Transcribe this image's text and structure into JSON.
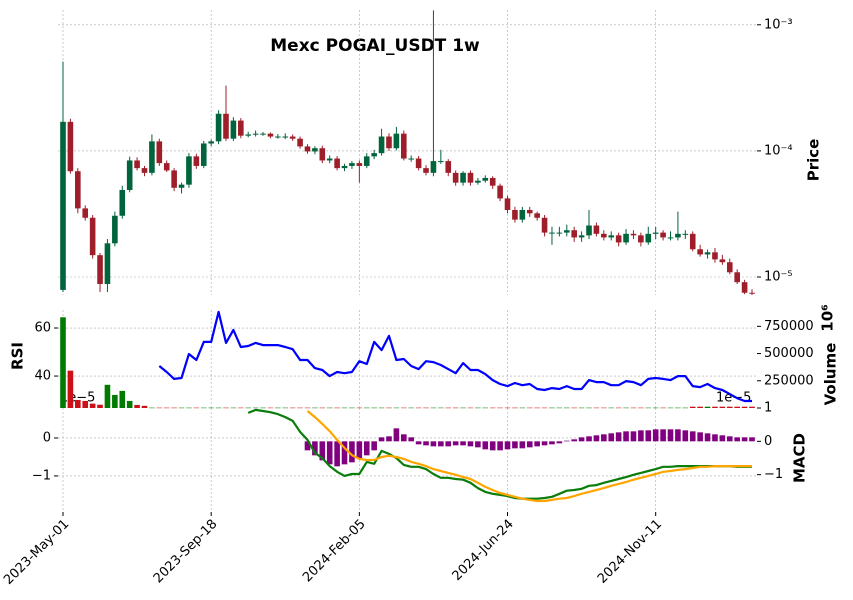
{
  "chart_data": [
    {
      "type": "candlestick",
      "title": "Mexc POGAI_USDT 1w",
      "ylabel": "Price",
      "log_scale": true,
      "up_color": "#00643c",
      "down_color": "#9e1f2a",
      "ylim": [
        7.2e-06,
        0.00131
      ],
      "yticks": [
        {
          "value": 1e-05,
          "label": "10⁻⁵"
        },
        {
          "value": 0.0001,
          "label": "10⁻⁴"
        },
        {
          "value": 0.001,
          "label": "10⁻³"
        }
      ],
      "grid": true,
      "open": [
        7.9e-06,
        0.00017,
        6.9e-05,
        3.5e-05,
        2.95e-05,
        1.49e-05,
        8.8e-06,
        1.85e-05,
        3.06e-05,
        4.9e-05,
        8.4e-05,
        7.3e-05,
        6.7e-05,
        0.000119,
        8e-05,
        7e-05,
        5.1e-05,
        5.4e-05,
        9.05e-05,
        7.6e-05,
        0.0001145,
        0.000119,
        0.000197,
        0.000125,
        0.000174,
        0.000132,
        0.000135,
        0.000137,
        0.000137,
        0.00013,
        0.00013,
        0.00013,
        0.000125,
        0.0001085,
        9.9e-05,
        0.000105,
        8.4e-05,
        8.7e-05,
        7.3e-05,
        7.6e-05,
        8e-05,
        7.6e-05,
        9.05e-05,
        9.6e-05,
        0.00013,
        0.000105,
        0.000137,
        8.7e-05,
        8.7e-05,
        7.3e-05,
        6.7e-05,
        8.3e-05,
        8.3e-05,
        6.7e-05,
        5.6e-05,
        6.7e-05,
        5.6e-05,
        5.8e-05,
        6.1e-05,
        5.3e-05,
        4.2e-05,
        3.4e-05,
        2.85e-05,
        3.4e-05,
        3.2e-05,
        2.95e-05,
        2.25e-05,
        2.25e-05,
        2.25e-05,
        2.35e-05,
        2.06e-05,
        2.14e-05,
        2.56e-05,
        2.2e-05,
        2.06e-05,
        2.14e-05,
        1.88e-05,
        2.2e-05,
        2.14e-05,
        1.88e-05,
        2.2e-05,
        2.25e-05,
        2.06e-05,
        2.06e-05,
        2.2e-05,
        2.2e-05,
        1.66e-05,
        1.51e-05,
        1.57e-05,
        1.38e-05,
        1.31e-05,
        1.09e-05,
        9.1e-06,
        7.5e-06
      ],
      "high": [
        0.00051,
        0.00018,
        7.3e-05,
        3.7e-05,
        3.1e-05,
        1.55e-05,
        2e-05,
        3.3e-05,
        5.3e-05,
        9e-05,
        8.9e-05,
        7.6e-05,
        0.000135,
        0.000125,
        8.4e-05,
        7.3e-05,
        5.6e-05,
        9.6e-05,
        9.5e-05,
        0.00012,
        0.000123,
        0.00021,
        0.00033,
        0.000185,
        0.000182,
        0.000142,
        0.000145,
        0.000141,
        0.00014,
        0.000136,
        0.000138,
        0.000135,
        0.00013,
        0.000113,
        0.000109,
        0.00011,
        9.2e-05,
        9.1e-05,
        7.9e-05,
        8.3e-05,
        8.4e-05,
        9.6e-05,
        0.000102,
        0.00015,
        0.000138,
        0.000155,
        0.000145,
        9.2e-05,
        9.1e-05,
        7.7e-05,
        0.0013,
        0.000102,
        8.6e-05,
        7e-05,
        6.9e-05,
        7e-05,
        6.1e-05,
        6.4e-05,
        6.3e-05,
        5.5e-05,
        4.4e-05,
        3.6e-05,
        3.6e-05,
        3.6e-05,
        3.3e-05,
        3.1e-05,
        2.5e-05,
        2.5e-05,
        2.6e-05,
        2.5e-05,
        2.3e-05,
        3.4e-05,
        2.7e-05,
        2.35e-05,
        2.3e-05,
        2.25e-05,
        2.4e-05,
        2.35e-05,
        2.25e-05,
        2.5e-05,
        2.5e-05,
        2.35e-05,
        2.3e-05,
        3.3e-05,
        2.35e-05,
        2.3e-05,
        1.8e-05,
        1.65e-05,
        1.7e-05,
        1.5e-05,
        1.4e-05,
        1.15e-05,
        9.5e-06,
        8e-06
      ],
      "low": [
        7.6e-06,
        6.6e-05,
        3.2e-05,
        2.8e-05,
        1.4e-05,
        7.6e-06,
        7.6e-06,
        1.75e-05,
        2.9e-05,
        4.7e-05,
        7e-05,
        6.3e-05,
        6.4e-05,
        7.6e-05,
        6.8e-05,
        4.8e-05,
        4.6e-05,
        5.1e-05,
        7.2e-05,
        7.3e-05,
        0.000109,
        0.000113,
        0.00012,
        0.00012,
        0.000126,
        0.000128,
        0.00013,
        0.000132,
        0.000126,
        0.000125,
        0.000124,
        0.00012,
        0.000104,
        9.5e-05,
        9.4e-05,
        8e-05,
        8e-05,
        7e-05,
        6.9e-05,
        7.2e-05,
        5.6e-05,
        7.3e-05,
        8.6e-05,
        9.2e-05,
        0.0001,
        0.000101,
        8.4e-05,
        8.2e-05,
        7e-05,
        6.4e-05,
        6.3e-05,
        7.9e-05,
        6.3e-05,
        5.3e-05,
        5.3e-05,
        5.3e-05,
        5.4e-05,
        5.6e-05,
        5e-05,
        4e-05,
        3.2e-05,
        2.7e-05,
        2.7e-05,
        3e-05,
        2.8e-05,
        2.1e-05,
        1.8e-05,
        2.1e-05,
        2.1e-05,
        1.9e-05,
        1.9e-05,
        2e-05,
        2.1e-05,
        1.95e-05,
        1.95e-05,
        1.75e-05,
        1.8e-05,
        2e-05,
        1.75e-05,
        1.8e-05,
        2e-05,
        1.95e-05,
        1.95e-05,
        1.95e-05,
        2e-05,
        1.6e-05,
        1.45e-05,
        1.4e-05,
        1.3e-05,
        1.25e-05,
        1.05e-05,
        8.8e-06,
        7.3e-06,
        7.2e-06
      ],
      "close": [
        0.00017,
        6.9e-05,
        3.5e-05,
        2.95e-05,
        1.49e-05,
        8.8e-06,
        1.85e-05,
        3.06e-05,
        4.9e-05,
        8.4e-05,
        7.3e-05,
        6.7e-05,
        0.000119,
        8e-05,
        7e-05,
        5.1e-05,
        5.4e-05,
        9.05e-05,
        7.6e-05,
        0.0001145,
        0.000119,
        0.000197,
        0.000125,
        0.000174,
        0.000132,
        0.000135,
        0.000137,
        0.000137,
        0.00013,
        0.00013,
        0.00013,
        0.000125,
        0.0001085,
        9.9e-05,
        0.000105,
        8.4e-05,
        8.7e-05,
        7.3e-05,
        7.6e-05,
        8e-05,
        7.6e-05,
        9.05e-05,
        9.6e-05,
        0.00013,
        0.000105,
        0.000137,
        8.7e-05,
        8.7e-05,
        7.3e-05,
        6.7e-05,
        8.3e-05,
        8.3e-05,
        6.7e-05,
        5.6e-05,
        6.7e-05,
        5.6e-05,
        5.8e-05,
        6.1e-05,
        5.3e-05,
        4.2e-05,
        3.4e-05,
        2.85e-05,
        3.4e-05,
        3.2e-05,
        2.95e-05,
        2.25e-05,
        2.25e-05,
        2.25e-05,
        2.35e-05,
        2.06e-05,
        2.14e-05,
        2.56e-05,
        2.2e-05,
        2.06e-05,
        2.14e-05,
        1.88e-05,
        2.2e-05,
        2.14e-05,
        1.88e-05,
        2.2e-05,
        2.25e-05,
        2.06e-05,
        2.06e-05,
        2.2e-05,
        2.2e-05,
        1.66e-05,
        1.51e-05,
        1.57e-05,
        1.38e-05,
        1.31e-05,
        1.09e-05,
        9.1e-06,
        7.5e-06,
        7.4e-06
      ]
    },
    {
      "type": "combo",
      "ylabel": "RSI",
      "y2label": "Volume",
      "y2_offset": "10⁶",
      "ylim": [
        26.7,
        67.5
      ],
      "yticks": [
        40,
        60
      ],
      "y2lim": [
        0,
        900000
      ],
      "y2ticks": [
        250000,
        500000,
        750000
      ],
      "grid": true,
      "series": [
        {
          "type": "line",
          "color": "#0000ff",
          "values": [
            null,
            null,
            null,
            null,
            null,
            null,
            null,
            null,
            null,
            null,
            null,
            null,
            null,
            44.2,
            41.7,
            38.8,
            39.2,
            49.2,
            46.7,
            54.2,
            54.2,
            66.7,
            53.8,
            59.2,
            52.1,
            52.5,
            53.8,
            52.9,
            52.9,
            52.9,
            52.1,
            51.2,
            46.7,
            46.7,
            43.3,
            42.5,
            40,
            41.7,
            41.2,
            41.7,
            46.2,
            45,
            54.2,
            50.8,
            56.7,
            46.7,
            47.1,
            44.2,
            42.9,
            46.2,
            45.8,
            44.6,
            42.9,
            41.2,
            45.4,
            42.5,
            42.5,
            40.8,
            38.3,
            36.7,
            35.8,
            37.1,
            36.2,
            36.7,
            34.6,
            34.2,
            35,
            34.6,
            35.8,
            34.6,
            34.6,
            38.3,
            37.5,
            37.5,
            36.2,
            36.2,
            37.9,
            37.5,
            36.2,
            38.8,
            39.2,
            38.8,
            38.3,
            40,
            40,
            35.8,
            35.4,
            36.7,
            35,
            34.2,
            32.5,
            30.8,
            29.6,
            29.6
          ]
        },
        {
          "type": "bar",
          "axis": "y2",
          "up_color": "#007a00",
          "down_color": "#cc1018",
          "values": [
            833000,
            343000,
            74000,
            65000,
            40000,
            30000,
            213000,
            120000,
            157000,
            65000,
            28000,
            20000,
            3000,
            3000,
            3000,
            3000,
            3000,
            3000,
            3000,
            3000,
            3000,
            3000,
            3000,
            3000,
            3000,
            3000,
            3000,
            3000,
            3000,
            3000,
            3000,
            3000,
            3000,
            3000,
            3000,
            3000,
            3000,
            3000,
            3000,
            3000,
            3000,
            3000,
            3000,
            3000,
            3000,
            3000,
            3000,
            3000,
            3000,
            3000,
            3000,
            3000,
            3000,
            3000,
            3000,
            3000,
            3000,
            3000,
            3000,
            3000,
            3000,
            3000,
            3000,
            3000,
            3000,
            3000,
            3000,
            3000,
            3000,
            3000,
            3000,
            3000,
            3000,
            3000,
            3000,
            3000,
            3000,
            3000,
            3000,
            3000,
            3000,
            3000,
            3000,
            3000,
            3000,
            12000,
            12000,
            12000,
            12000,
            12000,
            12000,
            12000,
            12000,
            12000
          ]
        }
      ]
    },
    {
      "type": "combo",
      "ylabel": "MACD",
      "y_offset": "1e−5",
      "y2_offset": "1e−5",
      "ylim": [
        -1.95e-05,
        7.9e-06
      ],
      "yticks": [
        {
          "value": -1e-05,
          "label": "−1"
        },
        0
      ],
      "y2lim": [
        -2.12e-05,
        1e-05
      ],
      "y2ticks": [
        {
          "value": -1e-05,
          "label": "−1"
        },
        0,
        {
          "value": 1e-05,
          "label": "1"
        }
      ],
      "grid": true,
      "categories": [
        "2023-May-01",
        null,
        null,
        null,
        null,
        null,
        null,
        null,
        null,
        null,
        null,
        null,
        null,
        null,
        null,
        null,
        null,
        null,
        null,
        null,
        "2023-Sep-18",
        null,
        null,
        null,
        null,
        null,
        null,
        null,
        null,
        null,
        null,
        null,
        null,
        null,
        null,
        null,
        null,
        null,
        null,
        null,
        "2024-Feb-05",
        null,
        null,
        null,
        null,
        null,
        null,
        null,
        null,
        null,
        null,
        null,
        null,
        null,
        null,
        null,
        null,
        null,
        null,
        null,
        "2024-Jun-24",
        null,
        null,
        null,
        null,
        null,
        null,
        null,
        null,
        null,
        null,
        null,
        null,
        null,
        null,
        null,
        null,
        null,
        null,
        null,
        "2024-Nov-11",
        null,
        null,
        null,
        null,
        null,
        null,
        null,
        null,
        null,
        null,
        null,
        null,
        null
      ],
      "series": [
        {
          "type": "bar",
          "axis": "y2",
          "color": "#800080",
          "values": [
            null,
            null,
            null,
            null,
            null,
            null,
            null,
            null,
            null,
            null,
            null,
            null,
            null,
            null,
            null,
            null,
            null,
            null,
            null,
            null,
            null,
            null,
            null,
            null,
            null,
            null,
            null,
            null,
            null,
            null,
            null,
            null,
            null,
            -2.7e-06,
            -4.2e-06,
            -5.7e-06,
            -6.9e-06,
            -7.5e-06,
            -6.9e-06,
            -6.3e-06,
            -5.1e-06,
            -4.2e-06,
            -2.7e-06,
            1.2e-06,
            1.5e-06,
            3.9e-06,
            2.1e-06,
            1.2e-06,
            -9e-07,
            -1.2e-06,
            -1.5e-06,
            -1.5e-06,
            -1.5e-06,
            -1.2e-06,
            -1.2e-06,
            -1.5e-06,
            -1.8e-06,
            -2.4e-06,
            -2.7e-06,
            -2.7e-06,
            -2.4e-06,
            -2.1e-06,
            -2.1e-06,
            -1.8e-06,
            -1.5e-06,
            -1.2e-06,
            -9e-07,
            -6e-07,
            2e-07,
            6e-07,
            1.2e-06,
            1.5e-06,
            1.8e-06,
            2.1e-06,
            2.4e-06,
            2.7e-06,
            3e-06,
            3e-06,
            3.3e-06,
            3.3e-06,
            3.6e-06,
            3.6e-06,
            3.6e-06,
            3.6e-06,
            3.3e-06,
            3e-06,
            2.7e-06,
            2.4e-06,
            2.1e-06,
            1.8e-06,
            1.5e-06,
            1.2e-06,
            1.2e-06,
            1.2e-06
          ]
        },
        {
          "type": "line",
          "color": "#0a7d0a",
          "values": [
            null,
            null,
            null,
            null,
            null,
            null,
            null,
            null,
            null,
            null,
            null,
            null,
            null,
            null,
            null,
            null,
            null,
            null,
            null,
            null,
            null,
            null,
            null,
            null,
            null,
            6.6e-06,
            7.4e-06,
            7.1e-06,
            6.8e-06,
            6.3e-06,
            5.5e-06,
            4.5e-06,
            1.6e-06,
            -5e-07,
            -3.9e-06,
            -5.3e-06,
            -7.4e-06,
            -8.9e-06,
            -1e-05,
            -9.5e-06,
            -9.5e-06,
            -6.3e-06,
            -6.8e-06,
            -3.4e-06,
            -4.2e-06,
            -5.3e-06,
            -7.1e-06,
            -7.6e-06,
            -7.6e-06,
            -8.2e-06,
            -9.5e-06,
            -1.05e-05,
            -1.05e-05,
            -1.08e-05,
            -1.1e-05,
            -1.18e-05,
            -1.32e-05,
            -1.42e-05,
            -1.47e-05,
            -1.5e-05,
            -1.53e-05,
            -1.58e-05,
            -1.6e-05,
            -1.6e-05,
            -1.6e-05,
            -1.58e-05,
            -1.55e-05,
            -1.47e-05,
            -1.39e-05,
            -1.37e-05,
            -1.34e-05,
            -1.26e-05,
            -1.24e-05,
            -1.18e-05,
            -1.13e-05,
            -1.08e-05,
            -1.03e-05,
            -9.7e-06,
            -9.2e-06,
            -8.7e-06,
            -8.2e-06,
            -7.6e-06,
            -7.6e-06,
            -7.4e-06,
            -7.4e-06,
            -7.4e-06,
            -7.4e-06,
            -7.4e-06,
            -7.4e-06,
            -7.4e-06,
            -7.4e-06,
            -7.6e-06,
            -7.6e-06,
            -7.6e-06
          ]
        },
        {
          "type": "line",
          "color": "#ffa500",
          "values": [
            null,
            null,
            null,
            null,
            null,
            null,
            null,
            null,
            null,
            null,
            null,
            null,
            null,
            null,
            null,
            null,
            null,
            null,
            null,
            null,
            null,
            null,
            null,
            null,
            null,
            null,
            null,
            null,
            null,
            null,
            null,
            null,
            null,
            7.1e-06,
            5.5e-06,
            3.7e-06,
            1.8e-06,
            -5e-07,
            -2.6e-06,
            -4.5e-06,
            -5.5e-06,
            -5.8e-06,
            -5.8e-06,
            -5e-06,
            -4.7e-06,
            -5e-06,
            -5.5e-06,
            -6.3e-06,
            -6.8e-06,
            -7.4e-06,
            -8.2e-06,
            -8.7e-06,
            -9.2e-06,
            -9.7e-06,
            -1.03e-05,
            -1.08e-05,
            -1.18e-05,
            -1.29e-05,
            -1.37e-05,
            -1.45e-05,
            -1.5e-05,
            -1.55e-05,
            -1.6e-05,
            -1.63e-05,
            -1.66e-05,
            -1.66e-05,
            -1.63e-05,
            -1.6e-05,
            -1.58e-05,
            -1.53e-05,
            -1.47e-05,
            -1.42e-05,
            -1.37e-05,
            -1.32e-05,
            -1.26e-05,
            -1.21e-05,
            -1.16e-05,
            -1.1e-05,
            -1.05e-05,
            -1e-05,
            -9.5e-06,
            -8.9e-06,
            -8.7e-06,
            -8.4e-06,
            -8.2e-06,
            -7.9e-06,
            -7.6e-06,
            -7.6e-06,
            -7.4e-06,
            -7.4e-06,
            -7.4e-06,
            -7.4e-06,
            -7.4e-06,
            -7.4e-06
          ]
        }
      ]
    }
  ]
}
